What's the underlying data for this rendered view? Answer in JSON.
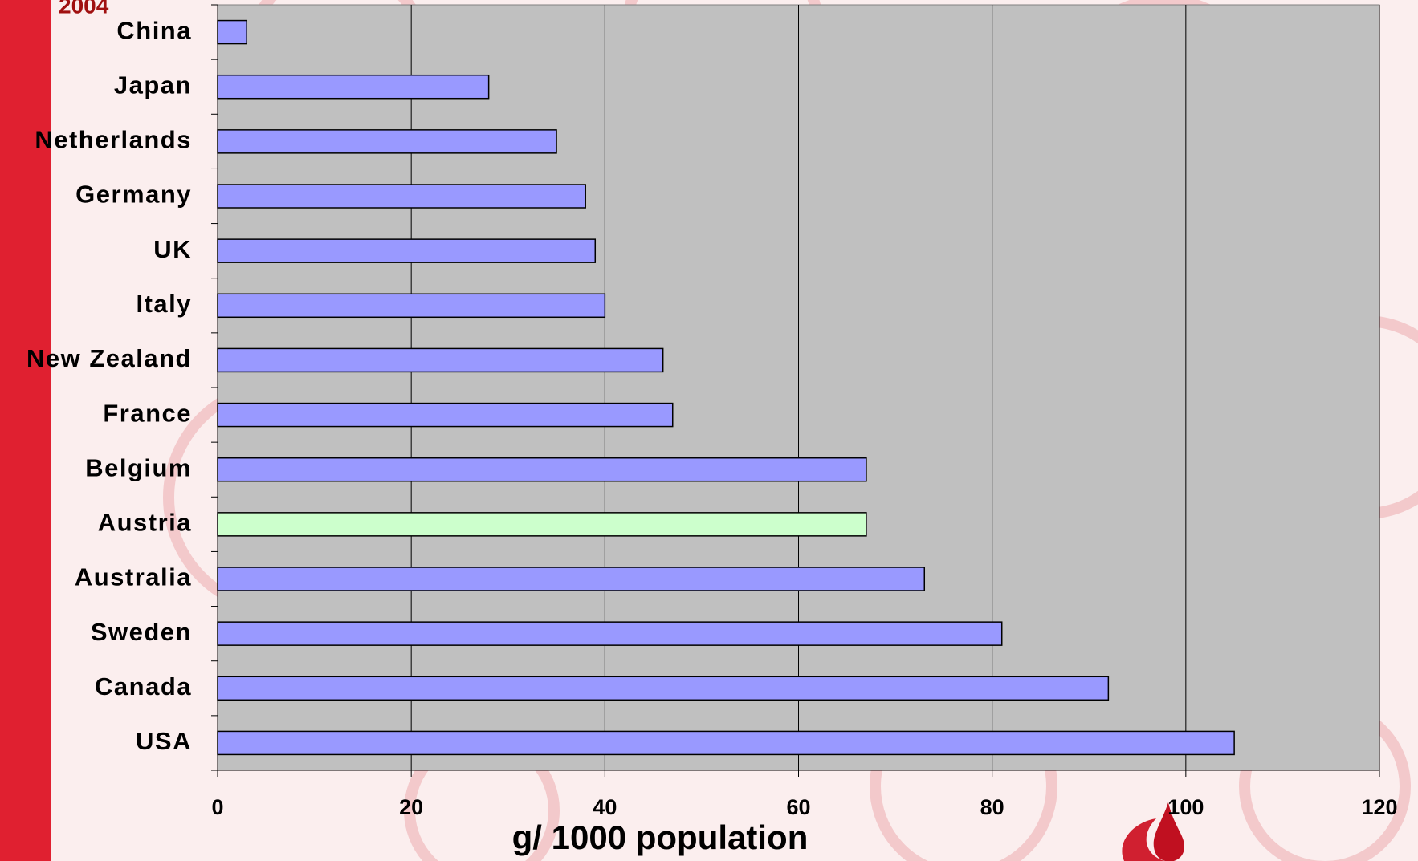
{
  "chart_data": {
    "type": "bar",
    "orientation": "horizontal",
    "title": "2004",
    "categories": [
      "China",
      "Japan",
      "Netherlands",
      "Germany",
      "UK",
      "Italy",
      "New Zealand",
      "France",
      "Belgium",
      "Austria",
      "Australia",
      "Sweden",
      "Canada",
      "USA"
    ],
    "values": [
      3,
      28,
      35,
      38,
      39,
      40,
      46,
      47,
      67,
      67,
      73,
      81,
      92,
      105
    ],
    "colors": [
      "#9999ff",
      "#9999ff",
      "#9999ff",
      "#9999ff",
      "#9999ff",
      "#9999ff",
      "#9999ff",
      "#9999ff",
      "#9999ff",
      "#ccffcc",
      "#9999ff",
      "#9999ff",
      "#9999ff",
      "#9999ff"
    ],
    "x_label": "g/ 1000 population",
    "xlim": [
      0,
      120
    ],
    "xticks": [
      0,
      20,
      40,
      60,
      80,
      100,
      120
    ],
    "grid": true
  }
}
